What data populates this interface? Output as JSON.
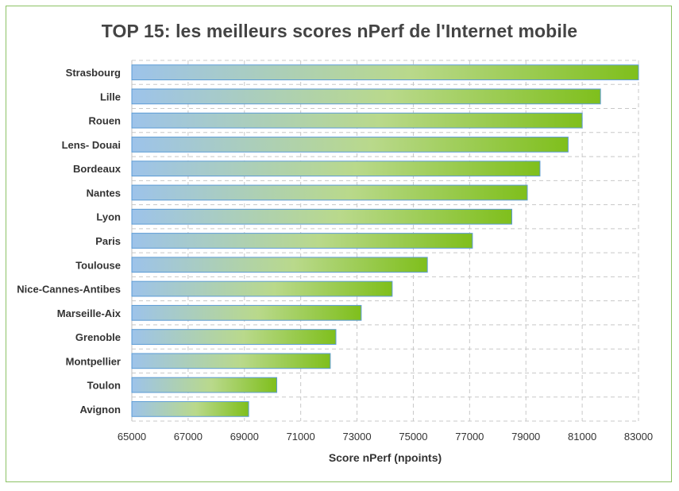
{
  "chart_data": {
    "type": "bar",
    "orientation": "horizontal",
    "title": "TOP 15: les meilleurs scores nPerf de l'Internet mobile",
    "xlabel": "Score nPerf (npoints)",
    "ylabel": "",
    "xlim": [
      65000,
      83000
    ],
    "x_ticks": [
      "65000",
      "67000",
      "69000",
      "71000",
      "73000",
      "75000",
      "77000",
      "79000",
      "81000",
      "83000"
    ],
    "grid": true,
    "legend": "none",
    "categories": [
      "Strasbourg",
      "Lille",
      "Rouen",
      "Lens- Douai",
      "Bordeaux",
      "Nantes",
      "Lyon",
      "Paris",
      "Toulouse",
      "Nice-Cannes-Antibes",
      "Marseille-Aix",
      "Grenoble",
      "Montpellier",
      "Toulon",
      "Avignon"
    ],
    "values": [
      83000,
      81650,
      81000,
      80500,
      79500,
      79050,
      78500,
      77100,
      75500,
      74250,
      73150,
      72250,
      72050,
      70150,
      69150
    ],
    "colors": {
      "bar_start": "#9dc3ea",
      "bar_mid": "#b9d98b",
      "bar_end": "#7fbf1c",
      "bar_border": "#5b9bd5",
      "grid": "#c8c8c8",
      "frame": "#8cc265"
    }
  }
}
